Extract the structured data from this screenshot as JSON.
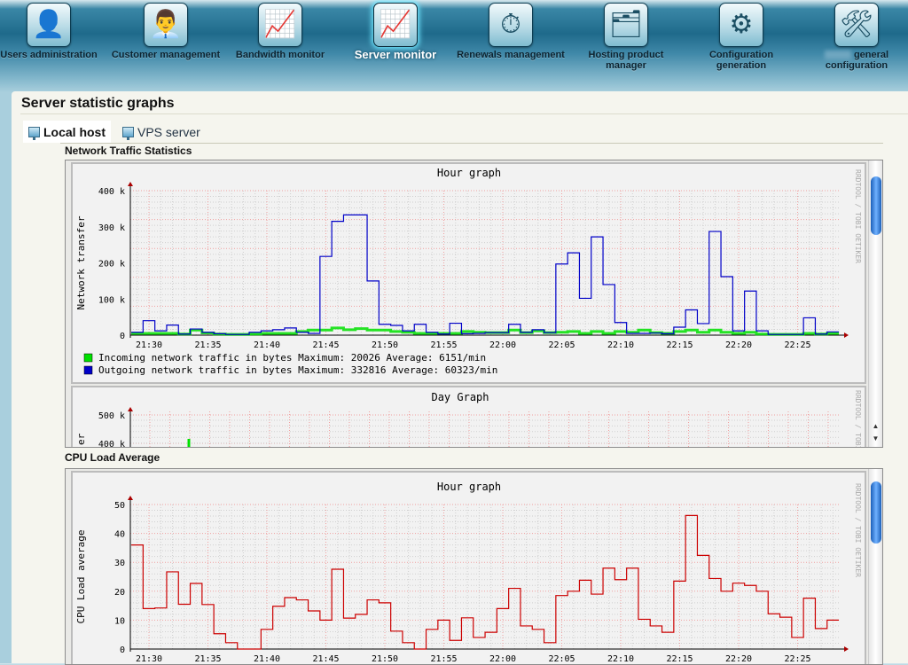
{
  "nav": {
    "items": [
      {
        "label": "Users administration",
        "icon": "user-icon",
        "glyph": "👤"
      },
      {
        "label": "Customer management",
        "icon": "customer-icon",
        "glyph": "👨‍💼"
      },
      {
        "label": "Bandwidth monitor",
        "icon": "bandwidth-chart-icon",
        "glyph": "📈"
      },
      {
        "label": "Server monitor",
        "icon": "server-monitor-icon",
        "glyph": "📈",
        "active": true
      },
      {
        "label": "Renewals management",
        "icon": "stopwatch-icon",
        "glyph": "⏱"
      },
      {
        "label": "Hosting product manager",
        "icon": "hosting-product-icon",
        "glyph": "🗂"
      },
      {
        "label": "Configuration generation",
        "icon": "gear-icon",
        "glyph": "⚙"
      },
      {
        "label": "general configuration",
        "icon": "tools-icon",
        "glyph": "🛠"
      }
    ]
  },
  "page": {
    "title": "Server statistic graphs",
    "tabs": [
      {
        "label": "Local host",
        "active": true
      },
      {
        "label": "VPS server"
      }
    ],
    "sections": {
      "network": "Network Traffic Statistics",
      "cpu": "CPU Load Average"
    }
  },
  "watermark": "RRDTOOL / TOBI OETIKER",
  "chart_data": [
    {
      "type": "line",
      "title": "Hour graph",
      "ylabel": "Network transfer",
      "ylim": [
        0,
        400000
      ],
      "yticks": [
        {
          "v": 0,
          "label": "0"
        },
        {
          "v": 100000,
          "label": "100 k"
        },
        {
          "v": 200000,
          "label": "200 k"
        },
        {
          "v": 300000,
          "label": "300 k"
        },
        {
          "v": 400000,
          "label": "400 k"
        }
      ],
      "xticks": [
        "21:30",
        "21:35",
        "21:40",
        "21:45",
        "21:50",
        "21:55",
        "22:00",
        "22:05",
        "22:10",
        "22:15",
        "22:20",
        "22:25"
      ],
      "grid": true,
      "x": [
        "21:29",
        "21:30",
        "21:31",
        "21:32",
        "21:33",
        "21:34",
        "21:35",
        "21:36",
        "21:37",
        "21:38",
        "21:39",
        "21:40",
        "21:41",
        "21:42",
        "21:43",
        "21:44",
        "21:45",
        "21:46",
        "21:47",
        "21:48",
        "21:49",
        "21:50",
        "21:51",
        "21:52",
        "21:53",
        "21:54",
        "21:55",
        "21:56",
        "21:57",
        "21:58",
        "21:59",
        "22:00",
        "22:01",
        "22:02",
        "22:03",
        "22:04",
        "22:05",
        "22:06",
        "22:07",
        "22:08",
        "22:09",
        "22:10",
        "22:11",
        "22:12",
        "22:13",
        "22:14",
        "22:15",
        "22:16",
        "22:17",
        "22:18",
        "22:19",
        "22:20",
        "22:21",
        "22:22",
        "22:23",
        "22:24",
        "22:25",
        "22:26",
        "22:27",
        "22:28"
      ],
      "series": [
        {
          "name": "Incoming network traffic in bytes",
          "color": "#00e000",
          "stats": "Maximum: 20026   Average: 6151/min",
          "values": [
            5000,
            5000,
            5000,
            5000,
            3000,
            14000,
            6000,
            3000,
            2000,
            2000,
            3000,
            5000,
            5000,
            5000,
            10000,
            14000,
            14000,
            20000,
            15000,
            18000,
            14000,
            14000,
            10000,
            8000,
            5000,
            5000,
            5000,
            5000,
            10000,
            8000,
            7000,
            7000,
            14000,
            7000,
            12000,
            7000,
            8000,
            10000,
            5000,
            10000,
            5000,
            10000,
            8000,
            14000,
            7000,
            5000,
            10000,
            14000,
            8000,
            14000,
            8000,
            5000,
            8000,
            3000,
            2000,
            2000,
            2000,
            5000,
            3000,
            5000
          ]
        },
        {
          "name": "Outgoing network traffic in bytes",
          "color": "#0000c8",
          "stats": "Maximum: 332816  Average: 60323/min",
          "values": [
            8000,
            40000,
            12000,
            28000,
            3000,
            17000,
            8000,
            4000,
            2000,
            2000,
            8000,
            12000,
            15000,
            20000,
            8000,
            5000,
            218000,
            315000,
            332816,
            332816,
            150000,
            30000,
            27000,
            12000,
            30000,
            8000,
            3000,
            33000,
            4000,
            5000,
            7000,
            7000,
            30000,
            8000,
            15000,
            7000,
            197000,
            228000,
            102000,
            272000,
            140000,
            35000,
            5000,
            5000,
            6000,
            4000,
            22000,
            70000,
            32000,
            287000,
            162000,
            12000,
            122000,
            12000,
            2000,
            2000,
            2000,
            48000,
            3000,
            9000
          ]
        }
      ]
    },
    {
      "type": "line",
      "title": "Day Graph",
      "yticks": [
        {
          "v": 500000,
          "label": "500 k"
        },
        {
          "v": 400000,
          "label": "400 k"
        }
      ],
      "ylabel": "er",
      "grid": true
    },
    {
      "type": "line",
      "title": "Hour graph",
      "ylabel": "CPU Load average",
      "ylim": [
        0,
        50
      ],
      "yticks": [
        {
          "v": 0,
          "label": "0"
        },
        {
          "v": 10,
          "label": "10"
        },
        {
          "v": 20,
          "label": "20"
        },
        {
          "v": 30,
          "label": "30"
        },
        {
          "v": 40,
          "label": "40"
        },
        {
          "v": 50,
          "label": "50"
        }
      ],
      "xticks": [
        "21:30",
        "21:35",
        "21:40",
        "21:45",
        "21:50",
        "21:55",
        "22:00",
        "22:05",
        "22:10",
        "22:15",
        "22:20",
        "22:25"
      ],
      "grid": true,
      "x": [
        "21:29",
        "21:30",
        "21:31",
        "21:32",
        "21:33",
        "21:34",
        "21:35",
        "21:36",
        "21:37",
        "21:38",
        "21:39",
        "21:40",
        "21:41",
        "21:42",
        "21:43",
        "21:44",
        "21:45",
        "21:46",
        "21:47",
        "21:48",
        "21:49",
        "21:50",
        "21:51",
        "21:52",
        "21:53",
        "21:54",
        "21:55",
        "21:56",
        "21:57",
        "21:58",
        "21:59",
        "22:00",
        "22:01",
        "22:02",
        "22:03",
        "22:04",
        "22:05",
        "22:06",
        "22:07",
        "22:08",
        "22:09",
        "22:10",
        "22:11",
        "22:12",
        "22:13",
        "22:14",
        "22:15",
        "22:16",
        "22:17",
        "22:18",
        "22:19",
        "22:20",
        "22:21",
        "22:22",
        "22:23",
        "22:24",
        "22:25",
        "22:26",
        "22:27",
        "22:28"
      ],
      "series": [
        {
          "color": "#cc0000",
          "values": [
            36,
            14,
            14.2,
            26.7,
            15.5,
            22.7,
            15.4,
            5.3,
            2.2,
            0,
            0,
            6.8,
            14.8,
            17.8,
            17,
            13.2,
            10,
            27.6,
            10.7,
            12,
            17,
            16,
            6.2,
            2.2,
            0,
            6.8,
            10,
            3,
            10.8,
            4,
            5.8,
            14,
            21,
            8,
            6.8,
            2.2,
            18.5,
            20,
            23.8,
            19,
            28,
            24,
            28,
            10.3,
            8,
            5.8,
            23.5,
            46.2,
            32.4,
            24.4,
            20,
            22.8,
            22,
            20,
            12.2,
            11,
            4,
            17.6,
            7.1,
            10
          ]
        }
      ]
    }
  ]
}
